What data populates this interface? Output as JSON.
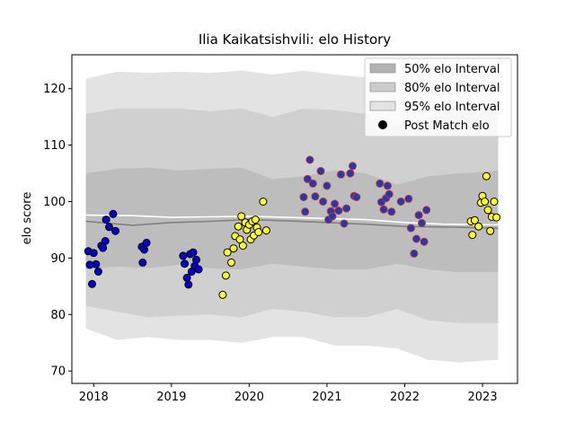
{
  "chart_data": {
    "type": "scatter",
    "title": "Ilia Kaikatsishvili: elo History",
    "xlabel": "",
    "ylabel": "elo score",
    "xlim": [
      2017.72,
      2023.45
    ],
    "ylim": [
      67.8,
      126.0
    ],
    "xticks": [
      2018,
      2019,
      2020,
      2021,
      2022,
      2023
    ],
    "yticks": [
      70,
      80,
      90,
      100,
      110,
      120
    ],
    "grid": false,
    "legend_position": "top-right",
    "legend": [
      {
        "label": "50% elo Interval",
        "kind": "band",
        "color": "#b3b3b3"
      },
      {
        "label": "80% elo Interval",
        "kind": "band",
        "color": "#cccccc"
      },
      {
        "label": "95% elo Interval",
        "kind": "band",
        "color": "#e3e3e3"
      },
      {
        "label": "Post Match elo",
        "kind": "marker",
        "color": "#000000"
      }
    ],
    "bands": {
      "x": [
        2017.9,
        2018.3,
        2018.7,
        2019.1,
        2019.5,
        2019.9,
        2020.3,
        2020.7,
        2021.1,
        2021.5,
        2021.9,
        2022.3,
        2022.7,
        2023.2
      ],
      "p95_hi": [
        121.8,
        123.0,
        122.8,
        123.0,
        122.8,
        123.2,
        122.5,
        123.2,
        122.5,
        122.0,
        121.0,
        122.5,
        122.5,
        122.8
      ],
      "p80_hi": [
        115.5,
        116.5,
        116.5,
        116.5,
        116.0,
        116.5,
        115.0,
        116.5,
        116.2,
        115.5,
        113.5,
        115.0,
        115.5,
        115.8
      ],
      "p50_hi": [
        105.0,
        105.8,
        106.0,
        105.5,
        105.8,
        106.0,
        104.0,
        104.5,
        105.5,
        105.0,
        103.0,
        104.5,
        105.0,
        105.5
      ],
      "p50_lo": [
        88.0,
        88.5,
        88.2,
        88.8,
        88.2,
        88.0,
        89.0,
        88.5,
        88.0,
        88.0,
        89.0,
        88.0,
        87.5,
        87.5
      ],
      "p80_lo": [
        81.5,
        80.5,
        79.5,
        79.8,
        80.0,
        79.5,
        81.0,
        80.5,
        79.5,
        79.5,
        81.0,
        79.0,
        78.5,
        78.5
      ],
      "p95_lo": [
        77.5,
        75.5,
        76.0,
        75.5,
        75.5,
        75.0,
        76.0,
        76.0,
        74.5,
        74.5,
        74.0,
        72.0,
        71.5,
        72.0
      ]
    },
    "mean_line": {
      "color": "#808080",
      "x": [
        2017.9,
        2018.5,
        2019.0,
        2019.5,
        2020.0,
        2020.5,
        2021.0,
        2021.5,
        2022.0,
        2022.5,
        2023.2
      ],
      "y": [
        96.5,
        95.8,
        96.3,
        96.5,
        96.8,
        96.6,
        96.3,
        96.0,
        95.6,
        95.5,
        95.3
      ]
    },
    "median_line": {
      "color": "#ffffff",
      "x": [
        2017.9,
        2018.5,
        2019.0,
        2019.5,
        2020.0,
        2020.5,
        2021.0,
        2021.5,
        2022.0,
        2022.5,
        2023.2
      ],
      "y": [
        97.6,
        97.5,
        97.2,
        97.3,
        97.4,
        97.2,
        97.0,
        96.8,
        96.3,
        96.0,
        95.9
      ]
    },
    "series": [
      {
        "fill": "#0000cd",
        "edge": "#000000",
        "x": [
          2017.93,
          2017.95,
          2017.98,
          2018.0,
          2018.03,
          2018.06,
          2018.1,
          2018.12,
          2018.15,
          2018.16,
          2018.2,
          2018.25,
          2018.28,
          2018.62,
          2018.63,
          2018.65,
          2018.68,
          2019.15,
          2019.17,
          2019.2,
          2019.22,
          2019.24,
          2019.26,
          2019.28,
          2019.3,
          2019.32,
          2019.35
        ],
        "y": [
          91.2,
          88.8,
          85.4,
          90.9,
          88.9,
          87.6,
          92.2,
          91.8,
          93.0,
          96.8,
          95.5,
          97.8,
          94.8,
          92.0,
          89.2,
          91.5,
          92.7,
          90.4,
          89.0,
          86.5,
          85.3,
          90.7,
          87.6,
          91.0,
          88.6,
          89.7,
          88.0
        ]
      },
      {
        "fill": "#ffff33",
        "edge": "#000000",
        "x": [
          2019.66,
          2019.7,
          2019.72,
          2019.77,
          2019.8,
          2019.82,
          2019.86,
          2019.88,
          2019.9,
          2019.92,
          2019.95,
          2019.97,
          2020.0,
          2020.02,
          2020.04,
          2020.06,
          2020.08,
          2020.1,
          2020.12,
          2020.18,
          2020.22,
          2022.85,
          2022.87,
          2022.9,
          2022.95,
          2022.98,
          2023.0,
          2023.03,
          2023.05,
          2023.07,
          2023.1,
          2023.12,
          2023.15,
          2023.18
        ],
        "y": [
          83.5,
          86.9,
          91.0,
          89.2,
          91.7,
          93.9,
          95.6,
          93.3,
          97.4,
          92.2,
          96.3,
          95.0,
          95.9,
          93.3,
          96.5,
          94.0,
          96.8,
          95.4,
          94.6,
          100.0,
          94.9,
          96.5,
          94.1,
          96.7,
          95.6,
          99.8,
          101.0,
          100.0,
          104.5,
          98.5,
          94.8,
          97.3,
          100.0,
          97.2
        ]
      },
      {
        "fill": "#1f3bb3",
        "edge": "#c03030",
        "x": [
          2020.7,
          2020.72,
          2020.75,
          2020.78,
          2020.82,
          2020.85,
          2020.92,
          2020.95,
          2021.0,
          2021.02,
          2021.05,
          2021.07,
          2021.1,
          2021.15,
          2021.18,
          2021.22,
          2021.25,
          2021.3,
          2021.33,
          2021.35,
          2021.38,
          2021.68,
          2021.7,
          2021.73,
          2021.76,
          2021.78,
          2021.8,
          2021.83,
          2021.95,
          2022.05,
          2022.08,
          2022.12,
          2022.15,
          2022.18,
          2022.22,
          2022.25,
          2022.28
        ],
        "y": [
          100.8,
          98.2,
          104.0,
          107.4,
          103.2,
          100.9,
          105.4,
          100.0,
          102.8,
          96.8,
          98.3,
          97.4,
          99.6,
          98.4,
          104.8,
          96.1,
          98.8,
          105.0,
          106.3,
          101.0,
          100.8,
          103.2,
          99.9,
          98.6,
          100.6,
          102.8,
          101.3,
          98.2,
          100.0,
          100.5,
          95.3,
          90.8,
          93.4,
          97.6,
          96.2,
          92.9,
          98.5
        ]
      }
    ]
  }
}
